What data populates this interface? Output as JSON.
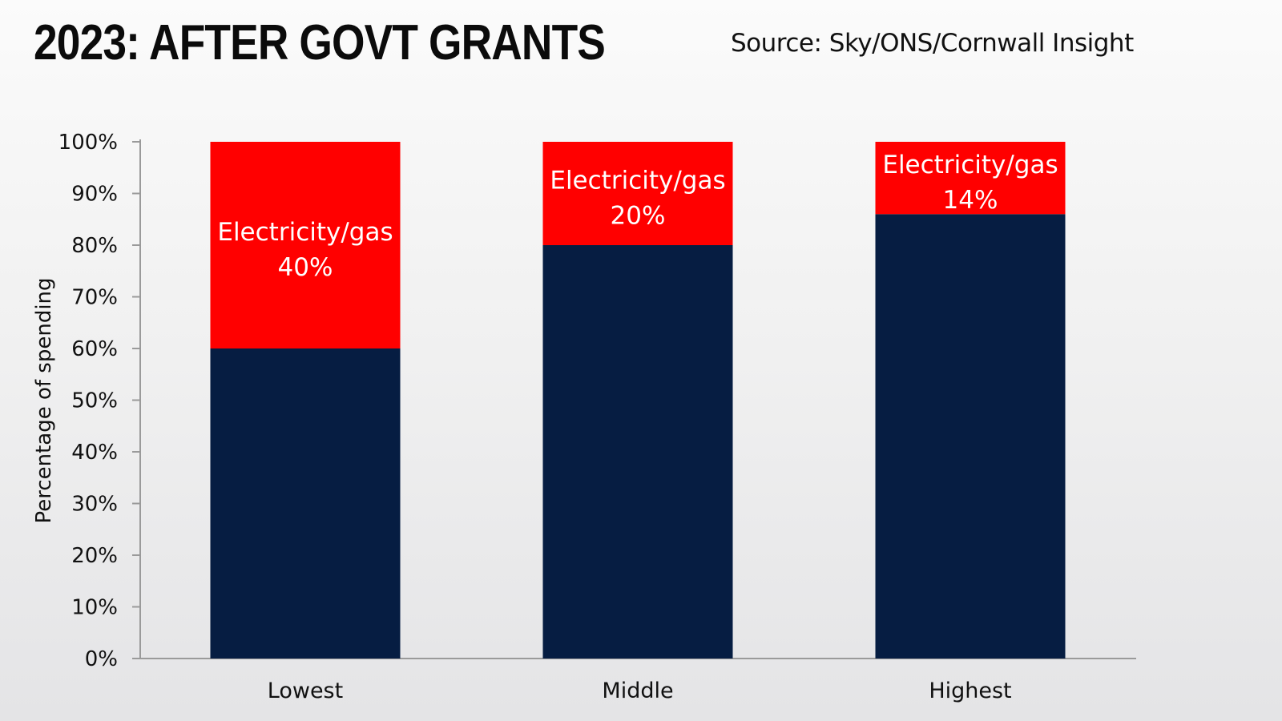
{
  "header": {
    "title": "2023: AFTER GOVT GRANTS",
    "source": "Source: Sky/ONS/Cornwall Insight"
  },
  "chart_data": {
    "type": "bar",
    "stacked": true,
    "title": "2023: AFTER GOVT GRANTS",
    "xlabel": "",
    "ylabel": "Percentage of spending",
    "ylim": [
      0,
      100
    ],
    "yticks": [
      "0%",
      "10%",
      "20%",
      "30%",
      "40%",
      "50%",
      "60%",
      "70%",
      "80%",
      "90%",
      "100%"
    ],
    "categories": [
      "Lowest",
      "Middle",
      "Highest"
    ],
    "series": [
      {
        "name": "",
        "color": "#061d42",
        "values": [
          60,
          80,
          86
        ]
      },
      {
        "name": "Electricity/gas",
        "color": "#ff0000",
        "values": [
          40,
          20,
          14
        ],
        "labels": [
          "40%",
          "20%",
          "14%"
        ]
      }
    ],
    "grid": false,
    "legend": "none"
  }
}
